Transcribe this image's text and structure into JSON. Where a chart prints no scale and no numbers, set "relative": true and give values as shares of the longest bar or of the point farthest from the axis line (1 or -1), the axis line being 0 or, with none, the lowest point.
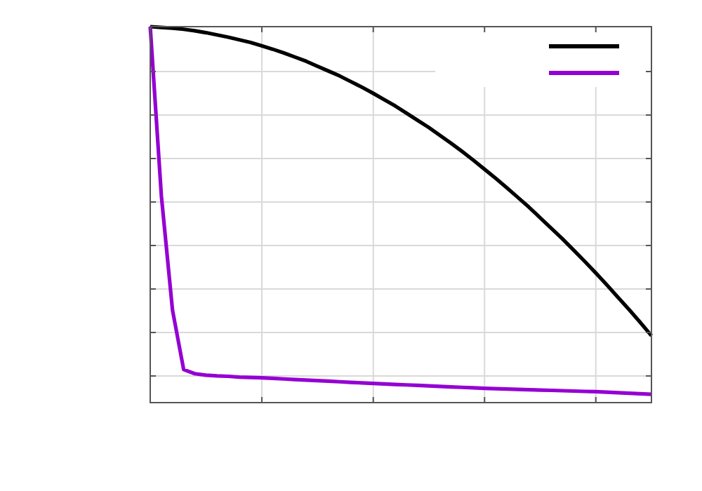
{
  "chart_data": {
    "type": "line",
    "relative": true,
    "grid": true,
    "categories": [
      null,
      null,
      null,
      null,
      null,
      null,
      null,
      null,
      null,
      null,
      null,
      null,
      null,
      null,
      null,
      null,
      null,
      null,
      null,
      null,
      null,
      null,
      null,
      null,
      null,
      null,
      null,
      null,
      null,
      null,
      null,
      null,
      null,
      null,
      null,
      null,
      null,
      null,
      null,
      null,
      null,
      null,
      null,
      null,
      null,
      null
    ],
    "series": [
      {
        "color": "#000000",
        "values": [
          1,
          0.998,
          0.996,
          0.993,
          0.989,
          0.984,
          0.978,
          0.972,
          0.965,
          0.958,
          0.949,
          0.94,
          0.93,
          0.919,
          0.908,
          0.895,
          0.882,
          0.869,
          0.854,
          0.839,
          0.823,
          0.806,
          0.789,
          0.77,
          0.751,
          0.732,
          0.711,
          0.69,
          0.668,
          0.645,
          0.621,
          0.597,
          0.572,
          0.546,
          0.52,
          0.492,
          0.464,
          0.436,
          0.406,
          0.376,
          0.345,
          0.313,
          0.28,
          0.247,
          0.213,
          0.178
        ]
      },
      {
        "color": "#9400d3",
        "values": [
          1,
          0.55,
          0.246,
          0.088,
          0.077,
          0.073,
          0.071,
          0.07,
          0.068,
          0.067,
          0.066,
          0.0645,
          0.063,
          0.0615,
          0.06,
          0.0585,
          0.057,
          0.0555,
          0.054,
          0.0525,
          0.051,
          0.0497,
          0.0484,
          0.0471,
          0.0458,
          0.0445,
          0.0432,
          0.0419,
          0.0406,
          0.0393,
          0.038,
          0.0371,
          0.0362,
          0.0353,
          0.0344,
          0.0335,
          0.0326,
          0.0317,
          0.0308,
          0.0299,
          0.029,
          0.0276,
          0.0262,
          0.0248,
          0.0234,
          0.022
        ]
      }
    ]
  }
}
